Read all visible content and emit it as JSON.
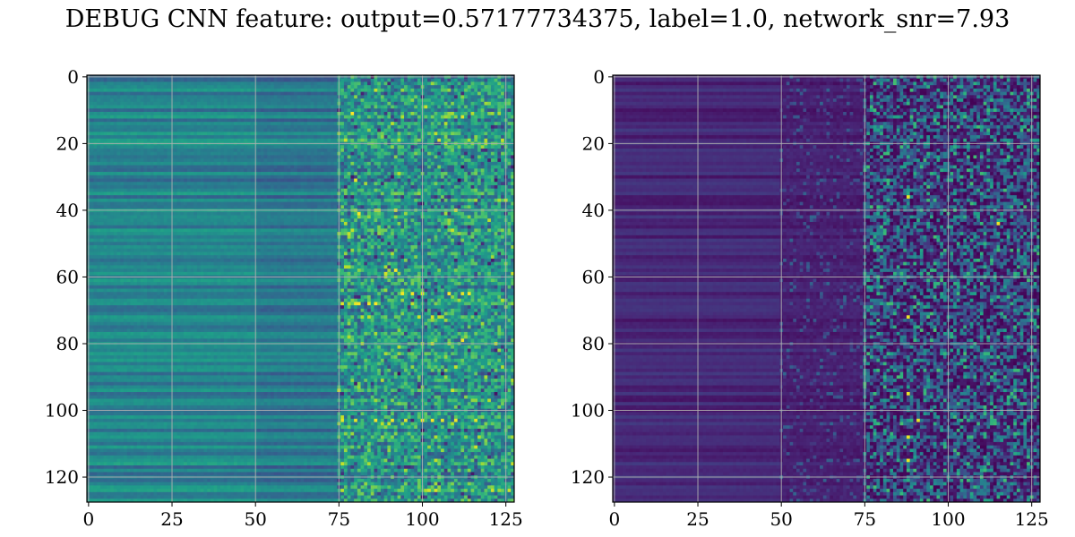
{
  "suptitle": "DEBUG CNN feature: output=0.57177734375, label=1.0, network_snr=7.93",
  "chart_data": [
    {
      "type": "heatmap",
      "panel": "left",
      "colormap": "viridis",
      "shape": [
        128,
        128
      ],
      "xlim": [
        0,
        127
      ],
      "ylim": [
        127,
        0
      ],
      "xticks": [
        0,
        25,
        50,
        75,
        100,
        125
      ],
      "yticks": [
        0,
        20,
        40,
        60,
        80,
        100,
        120
      ],
      "grid": true,
      "pattern": "horizontal banding across all columns; smooth teal/green for columns 0-75, noisy high-contrast speckle for columns 75-127 with occasional yellow hot pixels (e.g. rows 65, 68, 103)"
    },
    {
      "type": "heatmap",
      "panel": "right",
      "colormap": "viridis",
      "shape": [
        128,
        128
      ],
      "xlim": [
        0,
        127
      ],
      "ylim": [
        127,
        0
      ],
      "xticks": [
        0,
        25,
        50,
        75,
        100,
        125
      ],
      "yticks": [
        0,
        20,
        40,
        60,
        80,
        100,
        120
      ],
      "grid": true,
      "pattern": "mostly dark purple; faint banding for columns 0-50, sparse noisy teal/green speckle for columns 50-127 with rare yellow hot pixels (e.g. rows 72, 103, 108, 115)"
    }
  ]
}
